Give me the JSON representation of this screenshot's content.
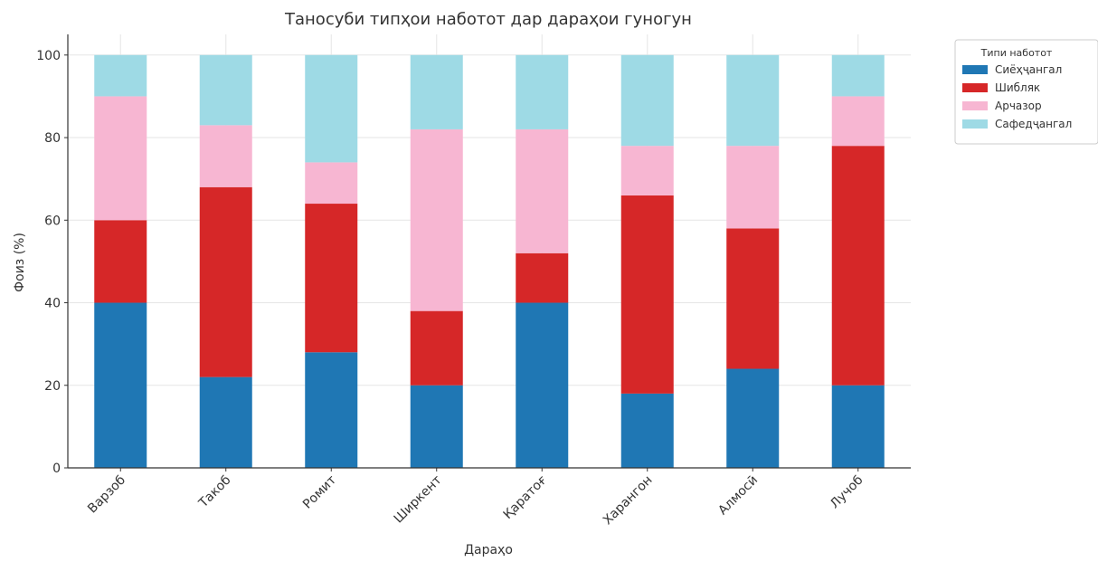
{
  "chart_data": {
    "type": "bar",
    "stacked": true,
    "title": "Таносуби типҳои наботот дар дараҳои гуногун",
    "xlabel": "Дараҳо",
    "ylabel": "Фоиз (%)",
    "ylim": [
      0,
      105
    ],
    "yticks": [
      0,
      20,
      40,
      60,
      80,
      100
    ],
    "grid": true,
    "legend_position": "outside top-right",
    "legend_title": "Типи наботот",
    "categories": [
      "Варзоб",
      "Такоб",
      "Ромит",
      "Ширкент",
      "Қаратоғ",
      "Харангон",
      "Алмосӣ",
      "Лучоб"
    ],
    "series": [
      {
        "name": "Сиёҳҷангал",
        "color": "#1f77b4",
        "values": [
          40,
          22,
          28,
          20,
          40,
          18,
          24,
          20
        ]
      },
      {
        "name": "Шибляк",
        "color": "#d62728",
        "values": [
          20,
          46,
          36,
          18,
          12,
          48,
          34,
          58
        ]
      },
      {
        "name": "Арчазор",
        "color": "#f7b6d2",
        "values": [
          30,
          15,
          10,
          44,
          30,
          12,
          20,
          12
        ]
      },
      {
        "name": "Сафедҷангал",
        "color": "#9edae5",
        "values": [
          10,
          17,
          26,
          18,
          18,
          22,
          22,
          10
        ]
      }
    ]
  }
}
